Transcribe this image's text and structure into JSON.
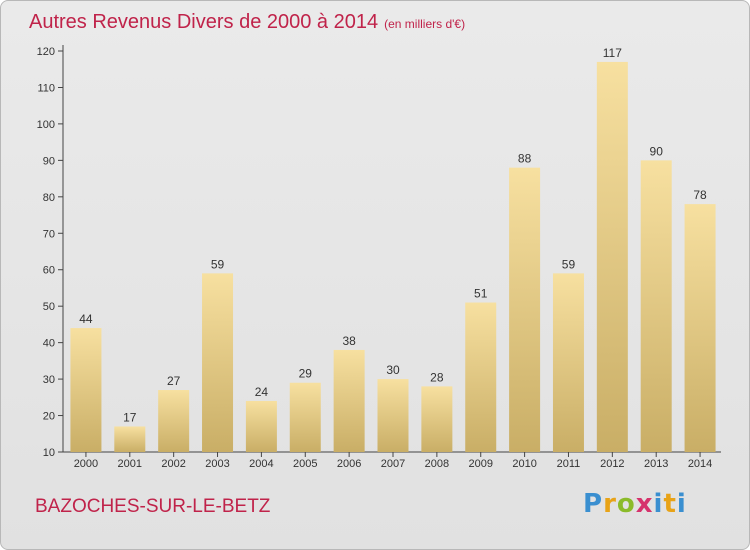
{
  "title": "Autres Revenus Divers de 2000 à 2014",
  "subtitle": "(en milliers d'€)",
  "place": "BAZOCHES-SUR-LE-BETZ",
  "logo_text": "Proxiti",
  "colors": {
    "title": "#c0234a",
    "bar_top": "#f7e0a0",
    "bar_bottom": "#c9ae66",
    "background": "#e5e5e5"
  },
  "chart_data": {
    "type": "bar",
    "categories": [
      "2000",
      "2001",
      "2002",
      "2003",
      "2004",
      "2005",
      "2006",
      "2007",
      "2008",
      "2009",
      "2010",
      "2011",
      "2012",
      "2013",
      "2014"
    ],
    "values": [
      44,
      17,
      27,
      59,
      24,
      29,
      38,
      30,
      28,
      51,
      88,
      59,
      117,
      90,
      78
    ],
    "ylim": [
      10,
      120
    ],
    "yticks": [
      10,
      20,
      30,
      40,
      50,
      60,
      70,
      80,
      90,
      100,
      110,
      120
    ],
    "grid": false,
    "legend": "none"
  }
}
